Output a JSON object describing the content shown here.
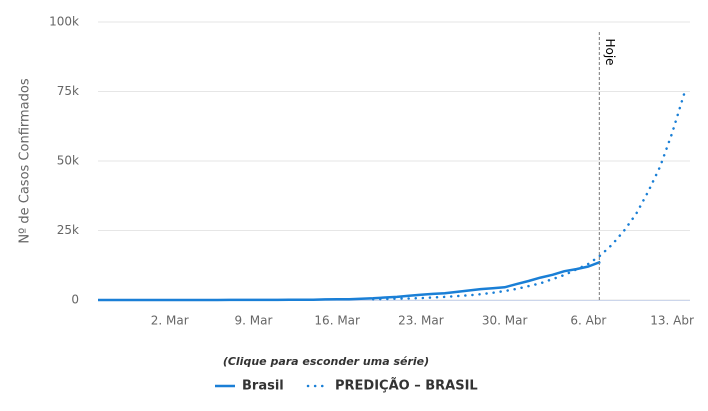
{
  "chart_data": {
    "type": "line",
    "y_axis_label": "Nº de Casos Confirmados",
    "legend_note": "(Clique para esconder uma série)",
    "plot_line_label": "Hoje",
    "categories": [
      null,
      null,
      null,
      null,
      null,
      null,
      "2. Mar",
      null,
      null,
      null,
      null,
      null,
      null,
      "9. Mar",
      null,
      null,
      null,
      null,
      null,
      null,
      "16. Mar",
      null,
      null,
      null,
      null,
      null,
      null,
      "23. Mar",
      null,
      null,
      null,
      null,
      null,
      null,
      "30. Mar",
      null,
      null,
      null,
      null,
      null,
      null,
      "6. Abr",
      null,
      null,
      null,
      null,
      null,
      null,
      "13. Abr",
      null
    ],
    "series": [
      {
        "name": "Brasil",
        "color": "#1a7fd6",
        "style": "solid",
        "values": [
          0,
          1,
          1,
          1,
          2,
          2,
          2,
          2,
          3,
          8,
          13,
          20,
          25,
          25,
          34,
          52,
          77,
          98,
          121,
          200,
          234,
          291,
          428,
          621,
          904,
          1128,
          1546,
          1891,
          2201,
          2433,
          2915,
          3417,
          3904,
          4256,
          4579,
          5717,
          6836,
          8044,
          9056,
          10360,
          11130,
          12056,
          13717,
          null,
          null,
          null,
          null,
          null,
          null,
          null
        ]
      },
      {
        "name": "PREDIÇÃO – BRASIL",
        "color": "#1a7fd6",
        "style": "dotted",
        "values": [
          null,
          null,
          null,
          null,
          null,
          null,
          null,
          null,
          null,
          null,
          null,
          null,
          null,
          null,
          null,
          null,
          null,
          null,
          null,
          null,
          null,
          null,
          null,
          280,
          350,
          450,
          550,
          700,
          900,
          1100,
          1400,
          1700,
          2100,
          2600,
          3200,
          4000,
          5000,
          6000,
          7500,
          9000,
          11000,
          13000,
          16000,
          20000,
          25000,
          31000,
          39000,
          48000,
          60000,
          74000
        ]
      }
    ],
    "ylim": [
      0,
      100000
    ],
    "yticks": [
      0,
      {
        "value": 25000,
        "label": "25k"
      },
      {
        "value": 50000,
        "label": "50k"
      },
      {
        "value": 75000,
        "label": "75k"
      },
      {
        "value": 100000,
        "label": "100k"
      }
    ],
    "grid": true
  }
}
